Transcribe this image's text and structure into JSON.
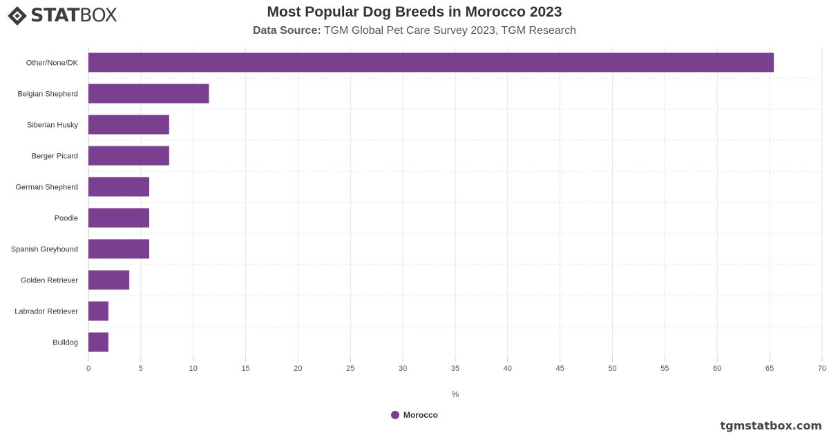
{
  "brand": {
    "logo_bold": "STAT",
    "logo_light": "BOX",
    "footer_url": "tgmstatbox.com"
  },
  "header": {
    "title": "Most Popular Dog Breeds in Morocco 2023",
    "source_label": "Data Source:",
    "source_text": "TGM Global Pet Care Survey 2023, TGM Research"
  },
  "chart_data": {
    "type": "bar",
    "orientation": "horizontal",
    "categories": [
      "Other/None/DK",
      "Belgian Shepherd",
      "Siberian Husky",
      "Berger Picard",
      "German Shepherd",
      "Poodle",
      "Spanish Greyhound",
      "Golden Retriever",
      "Labrador Retriever",
      "Bulldog"
    ],
    "series": [
      {
        "name": "Morocco",
        "color": "#7b3f8f",
        "values": [
          65.4,
          11.5,
          7.7,
          7.7,
          5.8,
          5.8,
          5.8,
          3.9,
          1.9,
          1.9
        ]
      }
    ],
    "xlabel": "%",
    "xlim": [
      0,
      70
    ],
    "xticks": [
      0,
      5,
      10,
      15,
      20,
      25,
      30,
      35,
      40,
      45,
      50,
      55,
      60,
      65,
      70
    ],
    "grid": true,
    "legend_position": "bottom-center"
  }
}
